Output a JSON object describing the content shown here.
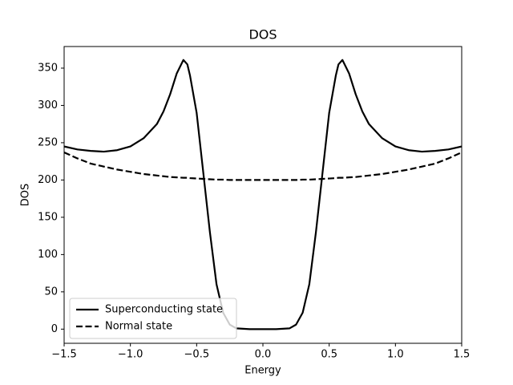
{
  "chart_data": {
    "type": "line",
    "title": "DOS",
    "xlabel": "Energy",
    "ylabel": "DOS",
    "x": [
      -1.5,
      -1.4,
      -1.3,
      -1.2,
      -1.1,
      -1.0,
      -0.9,
      -0.8,
      -0.75,
      -0.7,
      -0.65,
      -0.6,
      -0.57,
      -0.55,
      -0.5,
      -0.45,
      -0.4,
      -0.35,
      -0.3,
      -0.25,
      -0.2,
      -0.1,
      0,
      0.1,
      0.2,
      0.25,
      0.3,
      0.35,
      0.4,
      0.45,
      0.5,
      0.55,
      0.57,
      0.6,
      0.65,
      0.7,
      0.75,
      0.8,
      0.9,
      1.0,
      1.1,
      1.2,
      1.3,
      1.4,
      1.5
    ],
    "series": [
      {
        "name": "Superconducting state",
        "color": "#000000",
        "style": "solid",
        "values": [
          245,
          241,
          239,
          238,
          240,
          245,
          256,
          275,
          292,
          315,
          343,
          361,
          355,
          340,
          290,
          210,
          130,
          60,
          22,
          6,
          1,
          0,
          0,
          0,
          1,
          6,
          22,
          60,
          130,
          210,
          290,
          340,
          355,
          361,
          343,
          315,
          292,
          275,
          256,
          245,
          240,
          238,
          239,
          241,
          245
        ]
      },
      {
        "name": "Normal state",
        "color": "#000000",
        "style": "dashed",
        "values": [
          237,
          229,
          222,
          218,
          214,
          211,
          208,
          206,
          205,
          204,
          203.5,
          203,
          203,
          202.5,
          202,
          201.5,
          201,
          200.5,
          200.5,
          200,
          200,
          200,
          200,
          200,
          200,
          200,
          200.5,
          200.5,
          201,
          201.5,
          202,
          202.5,
          203,
          203,
          203.5,
          204,
          205,
          206,
          208,
          211,
          214,
          218,
          222,
          229,
          237
        ]
      }
    ],
    "xlim": [
      -1.5,
      1.5
    ],
    "xticks": [
      {
        "value": -1.5,
        "label": "−1.5"
      },
      {
        "value": -1.0,
        "label": "−1.0"
      },
      {
        "value": -0.5,
        "label": "−0.5"
      },
      {
        "value": 0.0,
        "label": "0.0"
      },
      {
        "value": 0.5,
        "label": "0.5"
      },
      {
        "value": 1.0,
        "label": "1.0"
      },
      {
        "value": 1.5,
        "label": "1.5"
      }
    ],
    "ylim": [
      -19,
      379
    ],
    "yticks": [
      0,
      50,
      100,
      150,
      200,
      250,
      300,
      350
    ],
    "grid": false,
    "legend": "lower left"
  }
}
